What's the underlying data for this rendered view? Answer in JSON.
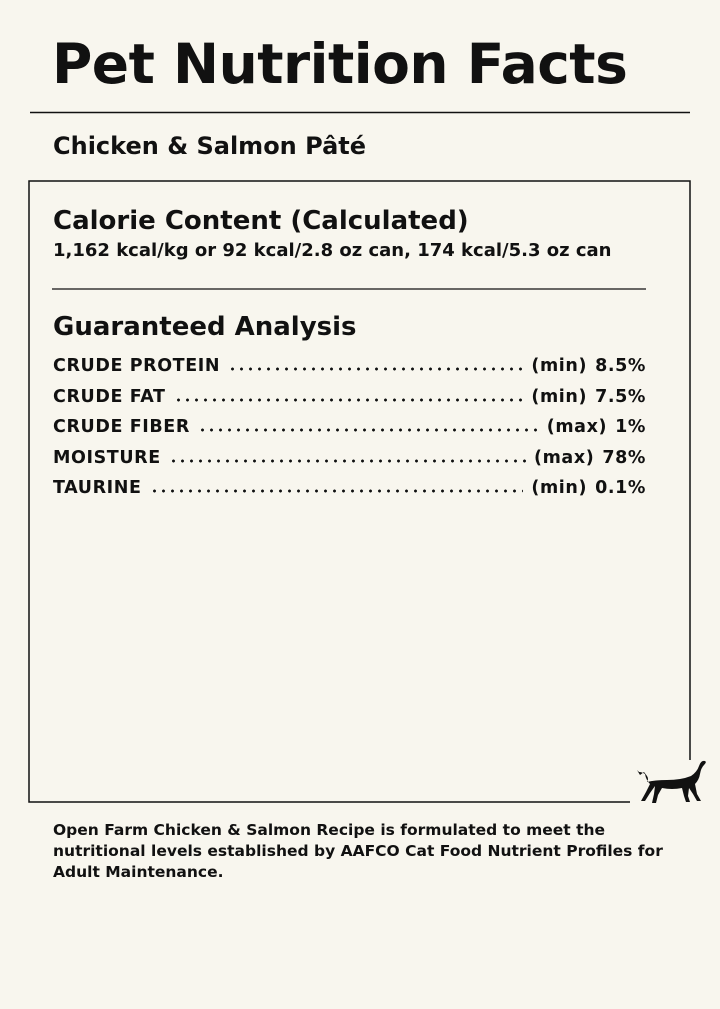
{
  "header": {
    "title": "Pet Nutrition Facts",
    "subtitle": "Chicken & Salmon Pâté"
  },
  "calorie": {
    "title": "Calorie Content (Calculated)",
    "text": "1,162 kcal/kg or 92 kcal/2.8 oz can, 174 kcal/5.3 oz can"
  },
  "analysis": {
    "title": "Guaranteed Analysis",
    "rows": [
      {
        "nutrient": "CRUDE PROTEIN",
        "basis": "(min)",
        "amount": "8.5%"
      },
      {
        "nutrient": "CRUDE FAT",
        "basis": "(min)",
        "amount": "7.5%"
      },
      {
        "nutrient": "CRUDE FIBER",
        "basis": "(max)",
        "amount": "1%"
      },
      {
        "nutrient": "MOISTURE",
        "basis": "(max)",
        "amount": "78%"
      },
      {
        "nutrient": "TAURINE",
        "basis": "(min)",
        "amount": "0.1%"
      }
    ]
  },
  "footer": {
    "text": "Open Farm Chicken & Salmon Recipe is formulated to meet the nutritional levels established by AAFCO Cat Food Nutrient Profiles for Adult Maintenance."
  }
}
